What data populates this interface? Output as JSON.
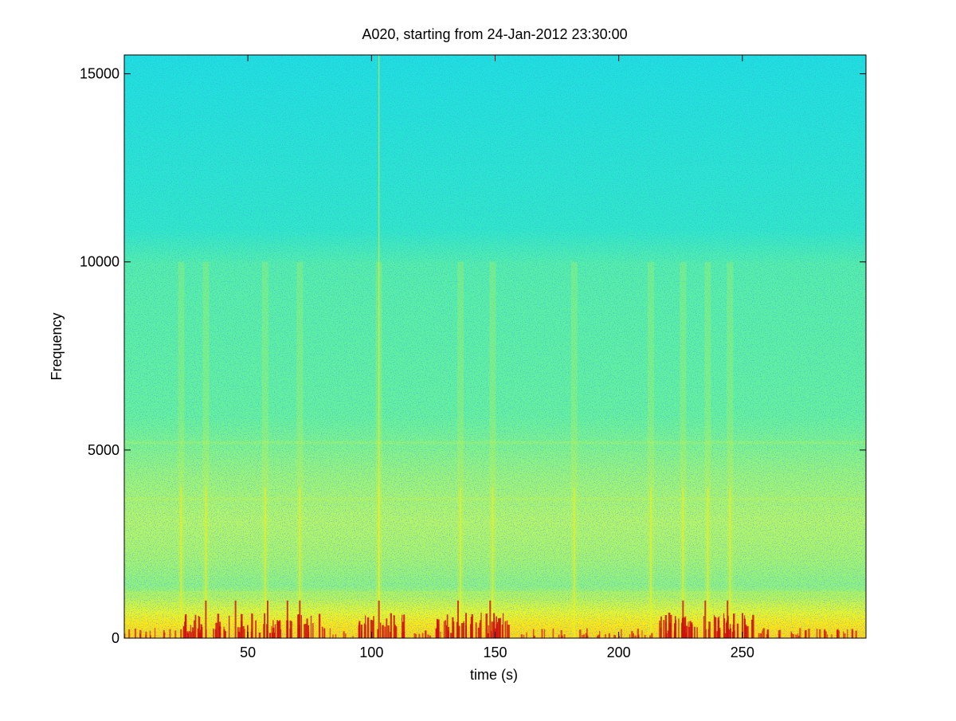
{
  "chart_data": {
    "type": "heatmap",
    "title": "A020, starting from 24-Jan-2012 23:30:00",
    "xlabel": "time (s)",
    "ylabel": "Frequency",
    "xlim": [
      0,
      300
    ],
    "ylim": [
      0,
      15500
    ],
    "xticks": [
      50,
      100,
      150,
      200,
      250
    ],
    "yticks": [
      0,
      5000,
      10000,
      15000
    ],
    "grid": false,
    "colormap": "jet",
    "colors": {
      "high_freq_band": "#22e6d8",
      "mid_freq_band": "#5ef2a0",
      "low_freq_band": "#d8f83a",
      "base_band": "#ffef10",
      "peak_events": "#cc1010"
    },
    "bands": [
      {
        "freq_range": [
          10000,
          15500
        ],
        "level": 0.4
      },
      {
        "freq_range": [
          4000,
          10000
        ],
        "level": 0.48
      },
      {
        "freq_range": [
          1000,
          4000
        ],
        "level": 0.56
      },
      {
        "freq_range": [
          0,
          700
        ],
        "level": 0.68
      }
    ],
    "vertical_streaks_s": [
      23,
      33,
      57,
      71,
      103,
      136,
      149,
      182,
      213,
      226,
      236,
      245
    ],
    "transient_events_s": [
      33,
      45,
      58,
      66,
      71,
      103,
      135,
      148,
      226,
      235,
      244
    ]
  }
}
